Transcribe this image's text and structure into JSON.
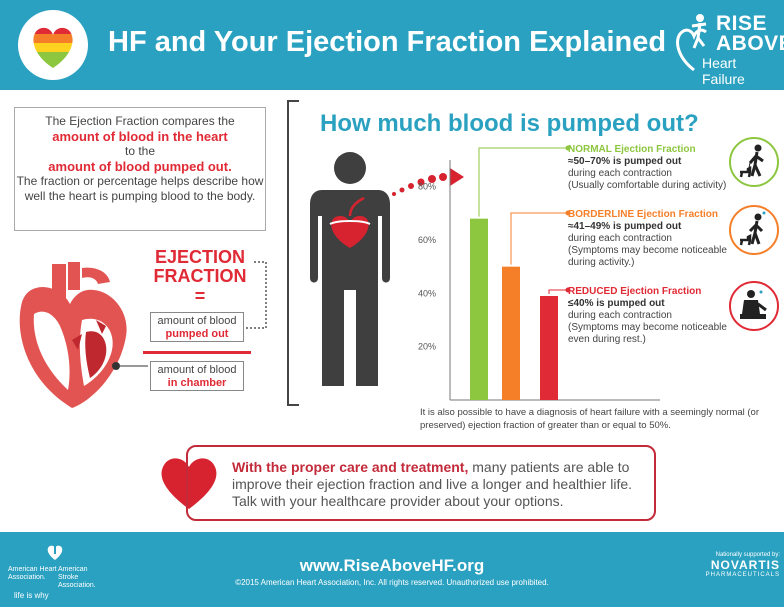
{
  "header": {
    "title": "HF and Your Ejection Fraction Explained",
    "brand_line1": "RISE",
    "brand_line2": "ABOVE",
    "brand_line3": "Heart Failure",
    "bg_color": "#2aa1c0"
  },
  "intro": {
    "line1": "The Ejection Fraction compares the",
    "red1": "amount of blood in the heart",
    "line2": "to the",
    "red2": "amount of blood pumped out.",
    "line3": "The fraction or percentage helps describe how well the heart is pumping blood to the body."
  },
  "equation": {
    "title_line1": "EJECTION",
    "title_line2": "FRACTION",
    "equals": "=",
    "numerator_line1": "amount of blood",
    "numerator_line2": "pumped out",
    "denominator_line1": "amount of blood",
    "denominator_line2": "in chamber"
  },
  "chart_data": {
    "type": "bar",
    "title": "How much blood is pumped out?",
    "yticks": [
      "80%",
      "60%",
      "40%",
      "20%"
    ],
    "ylim": [
      0,
      90
    ],
    "grid": false,
    "categories": [
      "NORMAL",
      "BORDERLINE",
      "REDUCED"
    ],
    "values": [
      68,
      50,
      39
    ],
    "colors": [
      "#8dc63f",
      "#f57f29",
      "#e02a35"
    ],
    "levels": [
      {
        "name": "NORMAL Ejection Fraction",
        "pct": "≈50–70% is pumped out",
        "desc1": "during each contraction",
        "desc2": "(Usually comfortable during activity)",
        "color": "#8dc63f",
        "icon": "walking-dog-icon"
      },
      {
        "name": "BORDERLINE Ejection Fraction",
        "pct": "≈41–49% is pumped out",
        "desc1": "during each contraction",
        "desc2": "(Symptoms may become noticeable during activity.)",
        "color": "#f57f29",
        "icon": "tired-walking-dog-icon"
      },
      {
        "name": "REDUCED Ejection Fraction",
        "pct": "≤40% is pumped out",
        "desc1": "during each contraction",
        "desc2": "(Symptoms may become noticeable even during rest.)",
        "color": "#e02a35",
        "icon": "resting-person-icon"
      }
    ]
  },
  "footnote": "It is also possible to have a diagnosis of heart failure with a seemingly normal (or preserved) ejection fraction of greater than or equal to 50%.",
  "cta": {
    "lead": "With the proper care and treatment,",
    "rest": " many patients are able to improve their ejection fraction and live a longer and healthier life. Talk with your healthcare provider about your options."
  },
  "footer": {
    "url": "www.RiseAboveHF.org",
    "copyright": "©2015 American Heart Association, Inc. All rights reserved. Unauthorized use prohibited.",
    "aha_name": "American Heart Association.",
    "asa_name": "American Stroke Association.",
    "tagline": "life is why",
    "sponsor_label": "Nationally supported by:",
    "sponsor_name": "NOVARTIS",
    "sponsor_sub": "PHARMACEUTICALS"
  }
}
